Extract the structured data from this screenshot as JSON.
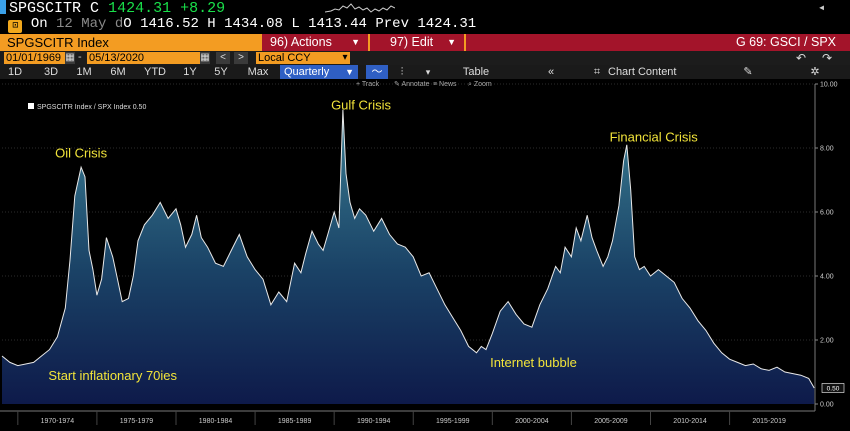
{
  "ticker": {
    "symbol": "SPGSCITR",
    "close_label": "C",
    "close_value": "1424.31",
    "change": "+8.29",
    "row2": {
      "on_label": "On",
      "date": "12 May",
      "d_label": "d",
      "open_label": "O",
      "open_value": "1416.52",
      "high_label": "H",
      "high_value": "1434.08",
      "low_label": "L",
      "low_value": "1413.44",
      "prev_label": "Prev",
      "prev_value": "1424.31"
    }
  },
  "titlebar": {
    "title": "SPGSCITR Index",
    "actions": "96) Actions",
    "edit": "97) Edit",
    "right": "G 69: GSCI / SPX"
  },
  "params": {
    "start_date": "01/01/1969",
    "end_date": "05/13/2020",
    "currency": "Local CCY"
  },
  "toolbar": {
    "ranges": [
      "1D",
      "3D",
      "1M",
      "6M",
      "YTD",
      "1Y",
      "5Y",
      "Max"
    ],
    "period": "Quarterly",
    "table": "Table",
    "chart_content": "Chart Content"
  },
  "chart_toolbar": {
    "track": "Track",
    "annotate": "Annotate",
    "news": "News",
    "zoom": "Zoom"
  },
  "chart_data": {
    "type": "area",
    "legend": "SPGSCITR Index / SPX Index  0.50",
    "last_value_label": "0.50",
    "ylim": [
      0,
      10
    ],
    "yticks": [
      "10.00",
      "8.00",
      "6.00",
      "4.00",
      "2.00",
      "0.00"
    ],
    "xtick_labels": [
      "1970-1974",
      "1975-1979",
      "1980-1984",
      "1985-1989",
      "1990-1994",
      "1995-1999",
      "2000-2004",
      "2005-2009",
      "2010-2014",
      "2015-2019"
    ],
    "x_range": [
      1969,
      2020.4
    ],
    "colors": {
      "line": "#e9e9e9",
      "fill_top": "#3a7d92",
      "fill_bottom": "#0e1a4a",
      "annotation": "#f2e43a"
    },
    "series": [
      {
        "x": [
          1969.0,
          1969.5,
          1970.0,
          1970.5,
          1971.0,
          1971.5,
          1972.0,
          1972.5,
          1973.0,
          1973.3,
          1973.6,
          1974.0,
          1974.25,
          1974.5,
          1974.75,
          1975.0,
          1975.3,
          1975.6,
          1976.0,
          1976.3,
          1976.6,
          1977.0,
          1977.3,
          1977.6,
          1978.0,
          1978.5,
          1979.0,
          1979.5,
          1980.0,
          1980.3,
          1980.6,
          1981.0,
          1981.3,
          1981.6,
          1982.0,
          1982.5,
          1983.0,
          1983.5,
          1984.0,
          1984.5,
          1985.0,
          1985.5,
          1986.0,
          1986.5,
          1987.0,
          1987.5,
          1987.9,
          1988.2,
          1988.6,
          1989.0,
          1989.3,
          1989.6,
          1990.0,
          1990.3,
          1990.55,
          1990.75,
          1991.0,
          1991.3,
          1991.6,
          1992.0,
          1992.5,
          1993.0,
          1993.5,
          1994.0,
          1994.5,
          1995.0,
          1995.5,
          1996.0,
          1996.5,
          1997.0,
          1997.5,
          1998.0,
          1998.5,
          1999.0,
          1999.3,
          1999.6,
          2000.0,
          2000.5,
          2001.0,
          2001.5,
          2002.0,
          2002.5,
          2003.0,
          2003.5,
          2004.0,
          2004.3,
          2004.6,
          2005.0,
          2005.3,
          2005.6,
          2006.0,
          2006.3,
          2006.6,
          2007.0,
          2007.3,
          2007.6,
          2008.0,
          2008.3,
          2008.5,
          2008.75,
          2009.0,
          2009.3,
          2009.6,
          2010.0,
          2010.5,
          2011.0,
          2011.5,
          2012.0,
          2012.5,
          2013.0,
          2013.5,
          2014.0,
          2014.5,
          2015.0,
          2015.5,
          2016.0,
          2016.5,
          2017.0,
          2017.5,
          2018.0,
          2018.5,
          2019.0,
          2019.5,
          2020.0,
          2020.35
        ],
        "y": [
          1.5,
          1.3,
          1.2,
          1.25,
          1.3,
          1.5,
          1.7,
          2.1,
          3.0,
          4.5,
          6.5,
          7.4,
          7.1,
          4.8,
          4.2,
          3.4,
          3.9,
          5.2,
          4.6,
          3.9,
          3.2,
          3.3,
          4.0,
          5.1,
          5.6,
          5.9,
          6.3,
          5.8,
          6.1,
          5.6,
          4.9,
          5.3,
          5.9,
          5.2,
          4.9,
          4.4,
          4.3,
          4.8,
          5.3,
          4.6,
          4.2,
          3.9,
          3.1,
          3.5,
          3.2,
          4.4,
          4.1,
          4.7,
          5.4,
          5.0,
          4.8,
          5.3,
          6.0,
          5.5,
          9.2,
          7.2,
          6.3,
          5.8,
          6.1,
          5.9,
          5.4,
          5.8,
          5.3,
          5.0,
          4.9,
          4.6,
          4.0,
          4.1,
          3.6,
          3.1,
          2.7,
          2.3,
          1.8,
          1.6,
          1.8,
          1.7,
          2.2,
          2.9,
          3.2,
          2.8,
          2.5,
          2.4,
          3.1,
          3.6,
          4.3,
          4.1,
          4.9,
          4.6,
          5.5,
          5.1,
          5.9,
          5.2,
          4.8,
          4.3,
          4.6,
          5.1,
          6.2,
          7.6,
          8.1,
          6.7,
          4.6,
          4.2,
          4.3,
          4.0,
          4.2,
          4.0,
          3.8,
          3.3,
          3.0,
          2.6,
          2.3,
          1.9,
          1.6,
          1.4,
          1.3,
          1.2,
          1.25,
          1.1,
          1.05,
          1.15,
          1.0,
          0.95,
          0.9,
          0.8,
          0.5
        ]
      }
    ],
    "annotations": [
      {
        "text": "Oil Crisis",
        "x": 1974.0,
        "y": 7.7
      },
      {
        "text": "Gulf Crisis",
        "x": 1991.7,
        "y": 9.2
      },
      {
        "text": "Financial Crisis",
        "x": 2010.2,
        "y": 8.2
      },
      {
        "text": "Internet bubble",
        "x": 2002.6,
        "y": 1.15
      },
      {
        "text": "Start inflationary 70ies",
        "x": 1976.0,
        "y": 0.75
      }
    ]
  }
}
